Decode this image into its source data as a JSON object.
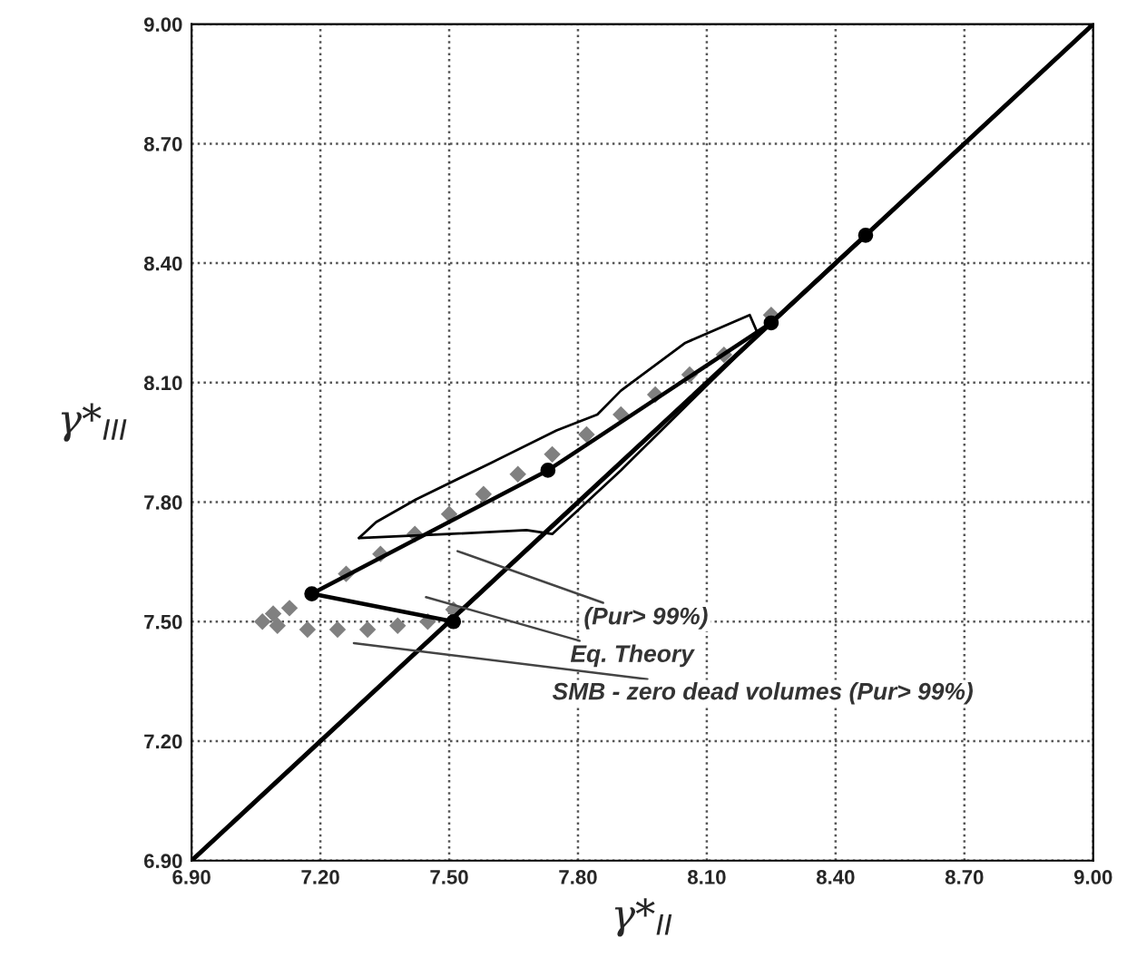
{
  "chart_data": {
    "type": "line",
    "xlabel": "γ*$_{II}$",
    "ylabel": "γ*$_{III}$",
    "xlim": [
      6.9,
      9.0
    ],
    "ylim": [
      6.9,
      9.0
    ],
    "xticks": [
      {
        "value": 6.9,
        "label": "6.90"
      },
      {
        "value": 7.2,
        "label": "7.20"
      },
      {
        "value": 7.5,
        "label": "7.50"
      },
      {
        "value": 7.8,
        "label": "7.80"
      },
      {
        "value": 8.1,
        "label": "8.10"
      },
      {
        "value": 8.4,
        "label": "8.40"
      },
      {
        "value": 8.7,
        "label": "8.70"
      },
      {
        "value": 9.0,
        "label": "9.00"
      }
    ],
    "yticks": [
      {
        "value": 6.9,
        "label": "6.90"
      },
      {
        "value": 7.2,
        "label": "7.20"
      },
      {
        "value": 7.5,
        "label": "7.50"
      },
      {
        "value": 7.8,
        "label": "7.80"
      },
      {
        "value": 8.1,
        "label": "8.10"
      },
      {
        "value": 8.4,
        "label": "8.40"
      },
      {
        "value": 8.7,
        "label": "8.70"
      },
      {
        "value": 9.0,
        "label": "9.00"
      }
    ],
    "grid": true,
    "legend": false,
    "series": [
      {
        "color": "#000000",
        "marker": "none",
        "x": [
          6.9,
          9.0
        ],
        "values": [
          6.9,
          9.0
        ]
      },
      {
        "type": "scatter",
        "color": "#808080",
        "marker": "diamond",
        "x": [
          7.51,
          7.45,
          7.38,
          7.31,
          7.24,
          7.17,
          7.1,
          7.065,
          7.09,
          7.128,
          7.18,
          7.26,
          7.34,
          7.42,
          7.5,
          7.58,
          7.66,
          7.74,
          7.82,
          7.9,
          7.98,
          8.06,
          8.14,
          8.2,
          8.25
        ],
        "values": [
          7.53,
          7.5,
          7.49,
          7.48,
          7.48,
          7.48,
          7.49,
          7.5,
          7.52,
          7.534,
          null,
          7.62,
          7.67,
          7.72,
          7.77,
          7.82,
          7.87,
          7.92,
          7.97,
          8.02,
          8.07,
          8.12,
          8.17,
          null,
          8.27
        ]
      },
      {
        "color": "#000000",
        "marker": "circle",
        "x": [
          7.51,
          7.18,
          7.73,
          8.25,
          8.47
        ],
        "values": [
          7.5,
          7.57,
          7.88,
          8.25,
          8.47
        ]
      },
      {
        "color": "#000000",
        "marker": "none",
        "x": [
          7.29,
          7.5,
          7.68,
          7.74,
          7.9,
          8.05,
          8.22
        ],
        "values": [
          7.71,
          7.72,
          7.73,
          7.72,
          7.88,
          8.04,
          8.22
        ]
      },
      {
        "color": "#000000",
        "marker": "none",
        "x": [
          7.29,
          7.33,
          7.423,
          7.6,
          7.75,
          7.845,
          7.9,
          8.05,
          8.2,
          8.22
        ],
        "values": [
          7.71,
          7.75,
          7.807,
          7.9,
          7.98,
          8.02,
          8.08,
          8.2,
          8.27,
          8.22
        ]
      }
    ],
    "annotations": [
      "(Pur> 99%)",
      "Eq. Theory",
      "SMB - zero dead volumes (Pur> 99%)"
    ]
  }
}
